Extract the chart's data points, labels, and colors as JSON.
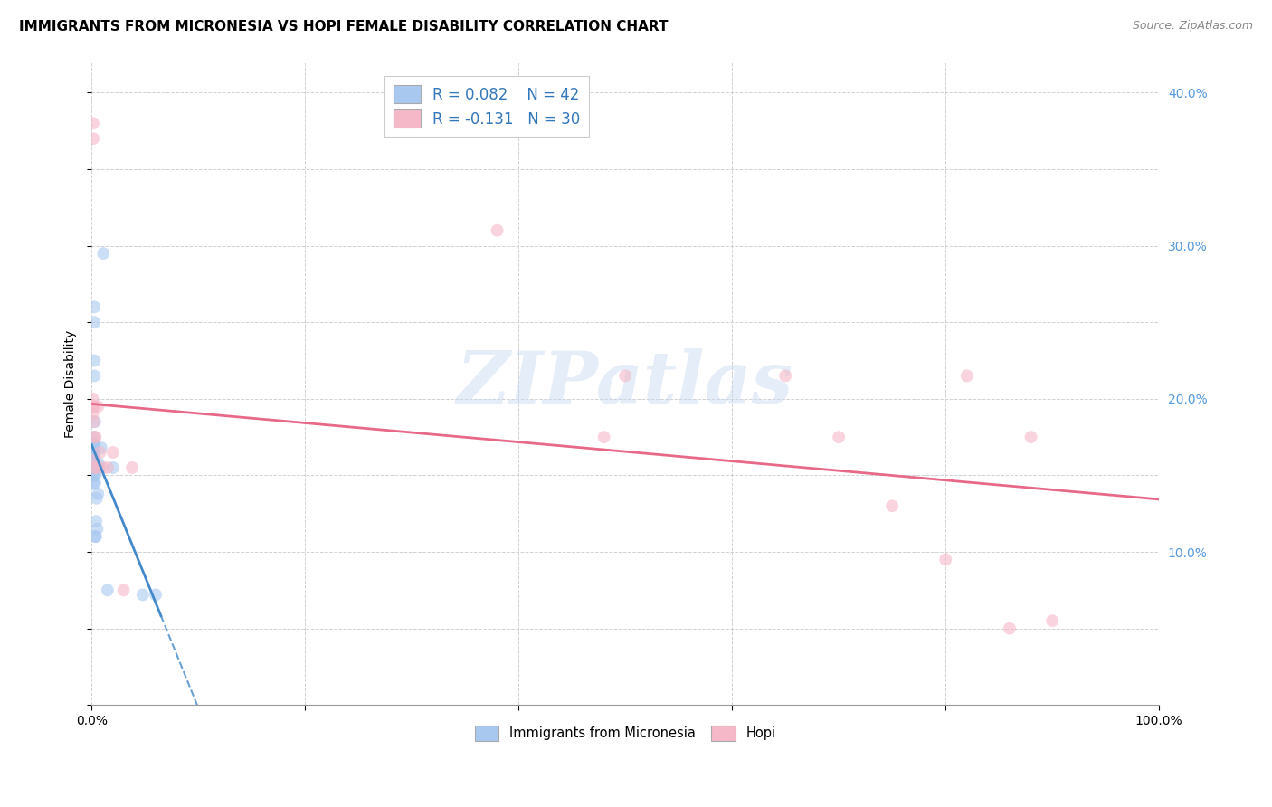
{
  "title": "IMMIGRANTS FROM MICRONESIA VS HOPI FEMALE DISABILITY CORRELATION CHART",
  "source": "Source: ZipAtlas.com",
  "ylabel": "Female Disability",
  "xlim": [
    0.0,
    1.0
  ],
  "ylim": [
    0.0,
    0.42
  ],
  "blue_color": "#a8c8f0",
  "pink_color": "#f5b8c8",
  "blue_line_color": "#4488cc",
  "pink_line_color": "#e86888",
  "blue_r": 0.082,
  "pink_r": -0.131,
  "blue_n": 42,
  "pink_n": 30,
  "blue_x": [
    0.0008,
    0.001,
    0.001,
    0.0012,
    0.0012,
    0.0014,
    0.0015,
    0.0015,
    0.0016,
    0.0016,
    0.0017,
    0.0018,
    0.0018,
    0.0019,
    0.002,
    0.002,
    0.0021,
    0.0022,
    0.0022,
    0.0023,
    0.0024,
    0.0025,
    0.0026,
    0.0027,
    0.0028,
    0.003,
    0.0032,
    0.0034,
    0.0035,
    0.0038,
    0.0042,
    0.0048,
    0.0052,
    0.006,
    0.0065,
    0.0075,
    0.009,
    0.011,
    0.015,
    0.02,
    0.048,
    0.06
  ],
  "blue_y": [
    0.155,
    0.165,
    0.17,
    0.16,
    0.17,
    0.175,
    0.155,
    0.165,
    0.145,
    0.155,
    0.165,
    0.15,
    0.16,
    0.17,
    0.155,
    0.165,
    0.16,
    0.15,
    0.16,
    0.165,
    0.25,
    0.26,
    0.215,
    0.225,
    0.17,
    0.185,
    0.145,
    0.15,
    0.11,
    0.11,
    0.12,
    0.135,
    0.115,
    0.138,
    0.158,
    0.155,
    0.168,
    0.295,
    0.075,
    0.155,
    0.072,
    0.072
  ],
  "pink_x": [
    0.001,
    0.0012,
    0.0014,
    0.0016,
    0.0018,
    0.002,
    0.0022,
    0.0024,
    0.0026,
    0.003,
    0.0035,
    0.004,
    0.006,
    0.008,
    0.01,
    0.015,
    0.02,
    0.03,
    0.038,
    0.38,
    0.48,
    0.5,
    0.65,
    0.7,
    0.75,
    0.8,
    0.82,
    0.86,
    0.88,
    0.9
  ],
  "pink_y": [
    0.2,
    0.19,
    0.38,
    0.37,
    0.195,
    0.185,
    0.195,
    0.16,
    0.155,
    0.175,
    0.175,
    0.155,
    0.195,
    0.165,
    0.155,
    0.155,
    0.165,
    0.075,
    0.155,
    0.31,
    0.175,
    0.215,
    0.215,
    0.175,
    0.13,
    0.095,
    0.215,
    0.05,
    0.175,
    0.055
  ],
  "watermark_text": "ZIPatlas",
  "legend_labels": [
    "Immigrants from Micronesia",
    "Hopi"
  ],
  "marker_size": 100,
  "marker_alpha": 0.6
}
